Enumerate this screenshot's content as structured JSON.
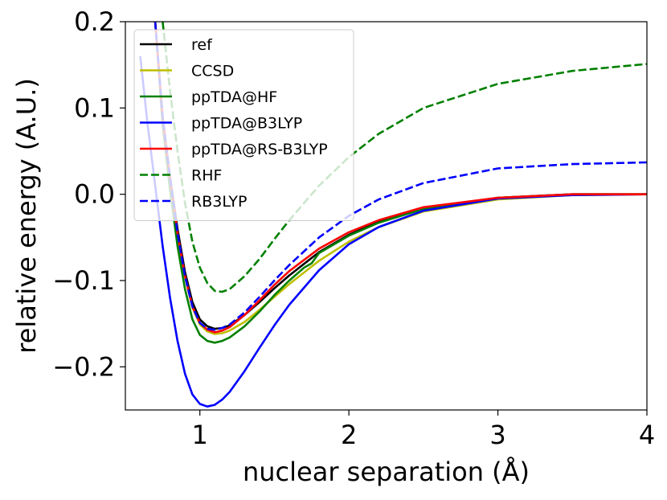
{
  "chart_data": {
    "type": "line",
    "title": "",
    "xlabel": "nuclear separation (Å)",
    "ylabel": "relative energy (A.U.)",
    "xlim": [
      0.5,
      4.0
    ],
    "ylim": [
      -0.25,
      0.2
    ],
    "xticks": [
      1,
      2,
      3,
      4
    ],
    "xtick_labels": [
      "1",
      "2",
      "3",
      "4"
    ],
    "yticks": [
      -0.2,
      -0.1,
      0.0,
      0.1,
      0.2
    ],
    "ytick_labels": [
      "−0.2",
      "−0.1",
      "0.0",
      "0.1",
      "0.2"
    ],
    "legend_position": "top-left",
    "series": [
      {
        "name": "ref",
        "color": "#000000",
        "dash": "solid",
        "x": [
          0.7,
          0.75,
          0.8,
          0.85,
          0.9,
          0.95,
          1.0,
          1.05,
          1.1,
          1.15,
          1.2,
          1.3,
          1.4,
          1.5,
          1.6,
          1.8,
          2.0,
          2.2,
          2.5,
          3.0,
          3.5,
          4.0
        ],
        "y": [
          0.2,
          0.09,
          0.02,
          -0.04,
          -0.09,
          -0.125,
          -0.145,
          -0.153,
          -0.156,
          -0.155,
          -0.152,
          -0.14,
          -0.125,
          -0.109,
          -0.094,
          -0.067,
          -0.047,
          -0.032,
          -0.016,
          -0.004,
          0.0,
          0.0
        ]
      },
      {
        "name": "CCSD",
        "color": "#bfbf00",
        "dash": "solid",
        "x": [
          0.7,
          0.75,
          0.8,
          0.85,
          0.9,
          0.95,
          1.0,
          1.05,
          1.1,
          1.15,
          1.2,
          1.3,
          1.4,
          1.5,
          1.6,
          1.8,
          2.0,
          2.2,
          2.5,
          3.0,
          3.5,
          4.0
        ],
        "y": [
          0.2,
          0.087,
          0.017,
          -0.046,
          -0.096,
          -0.131,
          -0.151,
          -0.159,
          -0.162,
          -0.161,
          -0.158,
          -0.148,
          -0.134,
          -0.119,
          -0.104,
          -0.077,
          -0.055,
          -0.038,
          -0.02,
          -0.006,
          -0.001,
          0.0
        ]
      },
      {
        "name": "ppTDA@HF",
        "color": "#008000",
        "dash": "solid",
        "x": [
          0.7,
          0.75,
          0.8,
          0.85,
          0.9,
          0.95,
          1.0,
          1.05,
          1.1,
          1.15,
          1.2,
          1.3,
          1.4,
          1.5,
          1.6,
          1.7,
          1.75,
          1.8,
          2.0,
          2.2,
          2.5,
          3.0,
          3.5,
          4.0
        ],
        "y": [
          0.2,
          0.08,
          0.005,
          -0.06,
          -0.11,
          -0.145,
          -0.163,
          -0.17,
          -0.172,
          -0.17,
          -0.166,
          -0.153,
          -0.136,
          -0.117,
          -0.1,
          -0.085,
          -0.08,
          -0.068,
          -0.048,
          -0.033,
          -0.017,
          -0.004,
          0.0,
          0.0
        ]
      },
      {
        "name": "ppTDA@B3LYP",
        "color": "#0000ff",
        "dash": "solid",
        "x": [
          0.6,
          0.65,
          0.7,
          0.75,
          0.8,
          0.85,
          0.9,
          0.95,
          1.0,
          1.05,
          1.1,
          1.15,
          1.2,
          1.3,
          1.4,
          1.5,
          1.6,
          1.8,
          2.0,
          2.2,
          2.5,
          3.0,
          3.5,
          4.0
        ],
        "y": [
          0.16,
          0.08,
          0.01,
          -0.06,
          -0.12,
          -0.17,
          -0.208,
          -0.232,
          -0.243,
          -0.246,
          -0.244,
          -0.238,
          -0.229,
          -0.205,
          -0.178,
          -0.152,
          -0.128,
          -0.088,
          -0.058,
          -0.038,
          -0.019,
          -0.005,
          -0.001,
          0.0
        ]
      },
      {
        "name": "ppTDA@RS-B3LYP",
        "color": "#ff0000",
        "dash": "solid",
        "x": [
          0.7,
          0.75,
          0.8,
          0.85,
          0.9,
          0.95,
          1.0,
          1.05,
          1.1,
          1.15,
          1.2,
          1.3,
          1.4,
          1.5,
          1.6,
          1.8,
          2.0,
          2.2,
          2.5,
          3.0,
          3.5,
          4.0
        ],
        "y": [
          0.2,
          0.088,
          0.018,
          -0.045,
          -0.095,
          -0.13,
          -0.149,
          -0.157,
          -0.16,
          -0.158,
          -0.154,
          -0.14,
          -0.123,
          -0.105,
          -0.089,
          -0.063,
          -0.044,
          -0.03,
          -0.015,
          -0.004,
          0.0,
          0.0
        ]
      },
      {
        "name": "RHF",
        "color": "#008000",
        "dash": "dashed",
        "x": [
          0.75,
          0.8,
          0.85,
          0.9,
          0.95,
          1.0,
          1.05,
          1.1,
          1.15,
          1.2,
          1.3,
          1.4,
          1.5,
          1.6,
          1.8,
          2.0,
          2.2,
          2.5,
          3.0,
          3.5,
          4.0
        ],
        "y": [
          0.2,
          0.12,
          0.05,
          -0.01,
          -0.055,
          -0.085,
          -0.103,
          -0.112,
          -0.113,
          -0.11,
          -0.095,
          -0.075,
          -0.052,
          -0.03,
          0.01,
          0.043,
          0.07,
          0.1,
          0.128,
          0.143,
          0.151
        ]
      },
      {
        "name": "RB3LYP",
        "color": "#0000ff",
        "dash": "dashed",
        "x": [
          0.7,
          0.75,
          0.8,
          0.85,
          0.9,
          0.95,
          1.0,
          1.05,
          1.1,
          1.15,
          1.2,
          1.3,
          1.4,
          1.5,
          1.6,
          1.8,
          2.0,
          2.2,
          2.5,
          3.0,
          3.5,
          4.0
        ],
        "y": [
          0.2,
          0.09,
          0.02,
          -0.045,
          -0.095,
          -0.13,
          -0.149,
          -0.156,
          -0.157,
          -0.155,
          -0.151,
          -0.137,
          -0.119,
          -0.1,
          -0.082,
          -0.05,
          -0.025,
          -0.006,
          0.013,
          0.03,
          0.035,
          0.037
        ]
      }
    ]
  }
}
